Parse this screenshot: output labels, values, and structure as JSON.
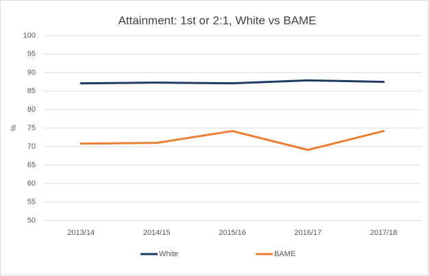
{
  "chart_data": {
    "type": "line",
    "title": "Attainment: 1st or 2:1, White vs BAME",
    "y_label": "%",
    "categories": [
      "2013/14",
      "2014/15",
      "2015/16",
      "2016/17",
      "2017/18"
    ],
    "series": [
      {
        "name": "White",
        "color": "#203864",
        "values": [
          87.1,
          87.3,
          87.1,
          87.9,
          87.5
        ]
      },
      {
        "name": "BAME",
        "color": "#ed7d31",
        "values": [
          70.8,
          71.0,
          74.2,
          69.1,
          74.2
        ]
      }
    ],
    "ylim": [
      50,
      100
    ],
    "yticks": [
      50,
      55,
      60,
      65,
      70,
      75,
      80,
      85,
      90,
      95,
      100
    ],
    "grid": true,
    "legend": "bottom"
  }
}
